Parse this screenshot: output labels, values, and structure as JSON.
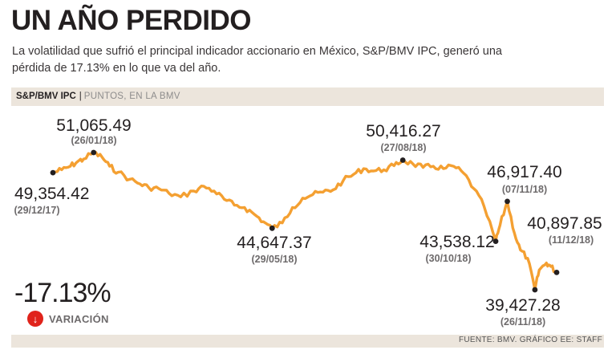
{
  "header": {
    "title": "UN AÑO PERDIDO",
    "subtitle": "La volatilidad que sufrió el principal indicador accionario en México, S&P/BMV IPC, generó una pérdida de 17.13% en lo que va del año."
  },
  "band": {
    "index_name": "S&P/BMV IPC",
    "separator": "|",
    "unit_label": "PUNTOS, EN LA BMV"
  },
  "variation": {
    "value": "-17.13%",
    "label": "VARIACIÓN",
    "icon": "arrow-down-icon"
  },
  "source": "FUENTE: BMV. GRÁFICO EE: STAFF",
  "colors": {
    "line": "#f4a032",
    "band": "#ece5dc",
    "text": "#231f20",
    "date": "#6d6a6b",
    "accent_red": "#e0231b"
  },
  "chart_data": {
    "type": "line",
    "title": "S&P/BMV IPC",
    "ylabel": "PUNTOS, EN LA BMV",
    "xlabel": "",
    "x_range": [
      "29/12/17",
      "11/12/18"
    ],
    "ylim": [
      39000,
      51500
    ],
    "grid": false,
    "series": [
      {
        "name": "S&P/BMV IPC",
        "x": [
          "29/12/17",
          "04/01/18",
          "10/01/18",
          "15/01/18",
          "19/01/18",
          "26/01/18",
          "01/02/18",
          "06/02/18",
          "12/02/18",
          "20/02/18",
          "27/02/18",
          "05/03/18",
          "12/03/18",
          "19/03/18",
          "27/03/18",
          "05/04/18",
          "12/04/18",
          "19/04/18",
          "26/04/18",
          "03/05/18",
          "10/05/18",
          "17/05/18",
          "23/05/18",
          "29/05/18",
          "05/06/18",
          "12/06/18",
          "19/06/18",
          "26/06/18",
          "03/07/18",
          "10/07/18",
          "17/07/18",
          "24/07/18",
          "31/07/18",
          "07/08/18",
          "14/08/18",
          "21/08/18",
          "27/08/18",
          "03/09/18",
          "10/09/18",
          "17/09/18",
          "24/09/18",
          "01/10/18",
          "08/10/18",
          "15/10/18",
          "22/10/18",
          "30/10/18",
          "02/11/18",
          "07/11/18",
          "12/11/18",
          "16/11/18",
          "21/11/18",
          "26/11/18",
          "29/11/18",
          "04/12/18",
          "07/12/18",
          "11/12/18"
        ],
        "values": [
          49354.42,
          49600,
          49900,
          50300,
          50500,
          51065.49,
          50650,
          49900,
          49400,
          48800,
          48400,
          48100,
          48000,
          47600,
          47300,
          47800,
          48200,
          47800,
          47100,
          46600,
          46400,
          45800,
          45200,
          44647.37,
          45100,
          46400,
          47200,
          47500,
          47700,
          47900,
          48700,
          49200,
          49700,
          49500,
          49600,
          49950,
          50416.27,
          50100,
          49800,
          49900,
          49700,
          49900,
          49300,
          48000,
          46500,
          43538.12,
          44900,
          46917.4,
          44200,
          42800,
          42100,
          39427.28,
          41100,
          41700,
          41400,
          40897.85
        ]
      }
    ],
    "annotations": [
      {
        "date": "29/12/17",
        "value": 49354.42,
        "value_label": "49,354.42",
        "date_label": "(29/12/17)"
      },
      {
        "date": "26/01/18",
        "value": 51065.49,
        "value_label": "51,065.49",
        "date_label": "(26/01/18)"
      },
      {
        "date": "29/05/18",
        "value": 44647.37,
        "value_label": "44,647.37",
        "date_label": "(29/05/18)"
      },
      {
        "date": "27/08/18",
        "value": 50416.27,
        "value_label": "50,416.27",
        "date_label": "(27/08/18)"
      },
      {
        "date": "30/10/18",
        "value": 43538.12,
        "value_label": "43,538.12",
        "date_label": "(30/10/18)"
      },
      {
        "date": "07/11/18",
        "value": 46917.4,
        "value_label": "46,917.40",
        "date_label": "(07/11/18)"
      },
      {
        "date": "26/11/18",
        "value": 39427.28,
        "value_label": "39,427.28",
        "date_label": "(26/11/18)"
      },
      {
        "date": "11/12/18",
        "value": 40897.85,
        "value_label": "40,897.85",
        "date_label": "(11/12/18)"
      }
    ]
  }
}
